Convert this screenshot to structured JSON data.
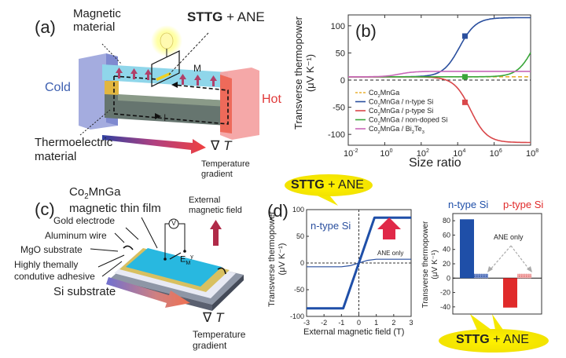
{
  "panel_a": {
    "label": "(a)",
    "title_bold": "STTG",
    "title_rest": " + ANE",
    "magnetic_material": [
      "Magnetic",
      "material"
    ],
    "thermoelectric_material": [
      "Thermoelectric",
      "material"
    ],
    "cold": "Cold",
    "hot": "Hot",
    "m_label": "M",
    "i_label": "I",
    "grad_symbol": "∇",
    "grad_var": "T",
    "grad_caption": [
      "Temperature",
      "gradient"
    ],
    "colors": {
      "cold": "#3d5fb0",
      "hot": "#e03a3a",
      "magnetic": "#8fd6ea",
      "thermo": "#5f6c6a"
    }
  },
  "panel_c": {
    "label": "(c)",
    "film_title": [
      "Co2MnGa",
      "magnetic thin film"
    ],
    "gold_electrode": "Gold electrode",
    "aluminum_wire": "Aluminum wire",
    "mgo_substrate": "MgO substrate",
    "adhesive": [
      "Highly themally",
      "condutive adhesive"
    ],
    "si_substrate": "Si substrate",
    "external_field": [
      "External",
      "magnetic field"
    ],
    "voltmeter": "V",
    "field_symbol": "E",
    "grad_symbol": "∇",
    "grad_var": "T",
    "grad_caption": [
      "Temperature",
      "gradient"
    ]
  },
  "chart_data": [
    {
      "id": "b",
      "type": "line",
      "panel_label": "(b)",
      "xlabel": "Size ratio",
      "ylabel": [
        "Transverse thermopower",
        "(μV K⁻¹)"
      ],
      "xscale": "log",
      "xlim_log10": [
        -2,
        8
      ],
      "ylim": [
        -120,
        120
      ],
      "xticks_log10": [
        -2,
        0,
        2,
        4,
        6,
        8
      ],
      "yticks": [
        -100,
        -50,
        0,
        50,
        100
      ],
      "legend_position": "bottom-left",
      "series": [
        {
          "name": "Co2MnGa",
          "color": "#e8b030",
          "dashed": true,
          "kind": "flat",
          "value": 6
        },
        {
          "name": "Co2MnGa / n-type Si",
          "color": "#2a4f9e",
          "kind": "sigmoid",
          "start": 6,
          "end": 115,
          "mid_log10": 4.1,
          "width": 0.45
        },
        {
          "name": "Co2MnGa / p-type Si",
          "color": "#d9474a",
          "kind": "sigmoid",
          "start": 6,
          "end": -115,
          "mid_log10": 4.7,
          "width": 0.45
        },
        {
          "name": "Co2MnGa / non-doped Si",
          "color": "#3aa63a",
          "kind": "sigmoid",
          "start": 6,
          "end": 120,
          "mid_log10": 8.2,
          "width": 0.45
        },
        {
          "name": "Co2MnGa / Bi2Te3",
          "color": "#c868b8",
          "kind": "sigmoid",
          "start": 6,
          "end": 16,
          "mid_log10": 0.8,
          "width": 0.4
        }
      ],
      "markers": [
        {
          "x_log10": 4.4,
          "y": 81,
          "color": "#2a4f9e"
        },
        {
          "x_log10": 4.4,
          "y": 6,
          "color": "#3aa63a"
        },
        {
          "x_log10": 4.4,
          "y": -41,
          "color": "#d9474a"
        }
      ],
      "reference_line_y": 0
    },
    {
      "id": "d",
      "type": "line",
      "panel_label": "(d)",
      "callout_bold": "STTG",
      "callout_rest": " + ANE",
      "xlabel": "External magnetic field",
      "xunit": "(T)",
      "ylabel": [
        "Transverse thermopower",
        "(μV K⁻¹)"
      ],
      "xlim": [
        -3,
        3
      ],
      "ylim": [
        -100,
        100
      ],
      "xticks": [
        -3,
        -2,
        -1,
        0,
        1,
        2,
        3
      ],
      "yticks": [
        -100,
        -50,
        0,
        50,
        100
      ],
      "annotation": "n-type Si",
      "annotation_small": "ANE only",
      "series": [
        {
          "name": "STTG + ANE",
          "color": "#1f4fa8",
          "points": [
            [
              -3,
              -85
            ],
            [
              -0.9,
              -85
            ],
            [
              0.9,
              85
            ],
            [
              3,
              85
            ]
          ]
        },
        {
          "name": "ANE only",
          "color": "#2a4f9e",
          "points": [
            [
              -3,
              -7
            ],
            [
              -1,
              -7
            ],
            [
              -0.5,
              -5
            ],
            [
              0,
              0
            ],
            [
              0.5,
              5
            ],
            [
              1,
              7
            ],
            [
              3,
              7
            ]
          ]
        }
      ]
    },
    {
      "id": "e",
      "type": "bar",
      "categories": [
        "n-type Si",
        "p-type Si"
      ],
      "category_colors": [
        "#1f4fa8",
        "#e02a2a"
      ],
      "ylabel": [
        "Transverse thermopower",
        "(μV K⁻¹)"
      ],
      "ylim": [
        -50,
        90
      ],
      "yticks": [
        -40,
        -20,
        0,
        20,
        40,
        60,
        80
      ],
      "annotation": "ANE only",
      "callout_bold": "STTG",
      "callout_rest": " + ANE",
      "series": [
        {
          "name": "STTG + ANE",
          "values": [
            82,
            -41
          ]
        },
        {
          "name": "ANE only",
          "values": [
            6,
            6
          ]
        }
      ]
    }
  ]
}
